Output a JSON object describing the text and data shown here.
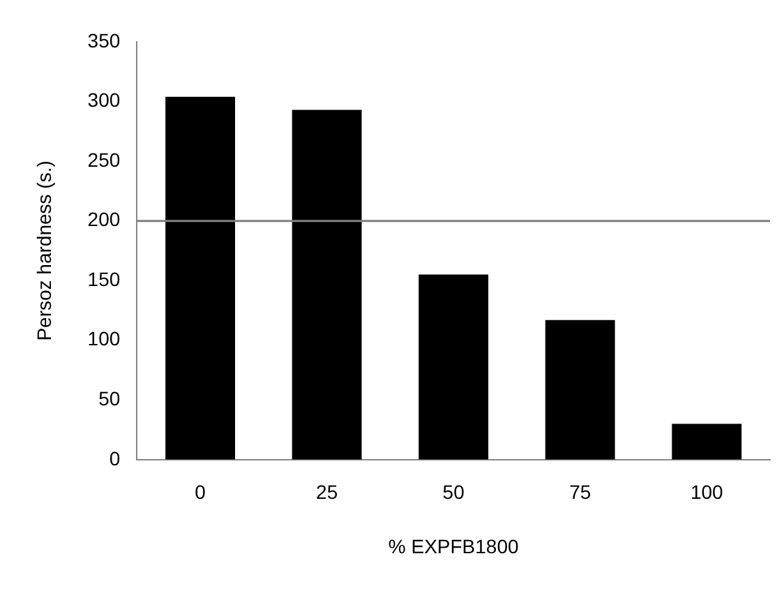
{
  "chart_data": {
    "type": "bar",
    "xlabel": "% EXPFB1800",
    "ylabel": "Persoz hardness (s.)",
    "categories": [
      "0",
      "25",
      "50",
      "75",
      "100"
    ],
    "values": [
      304,
      293,
      155,
      117,
      30
    ],
    "color": "#000000",
    "ylim": [
      0,
      350
    ],
    "yticks": [
      0,
      50,
      100,
      150,
      200,
      250,
      300,
      350
    ],
    "grid": false,
    "legend": false,
    "ref_lines": [
      {
        "axis": "y",
        "value": 200,
        "color": "#808080"
      }
    ]
  }
}
